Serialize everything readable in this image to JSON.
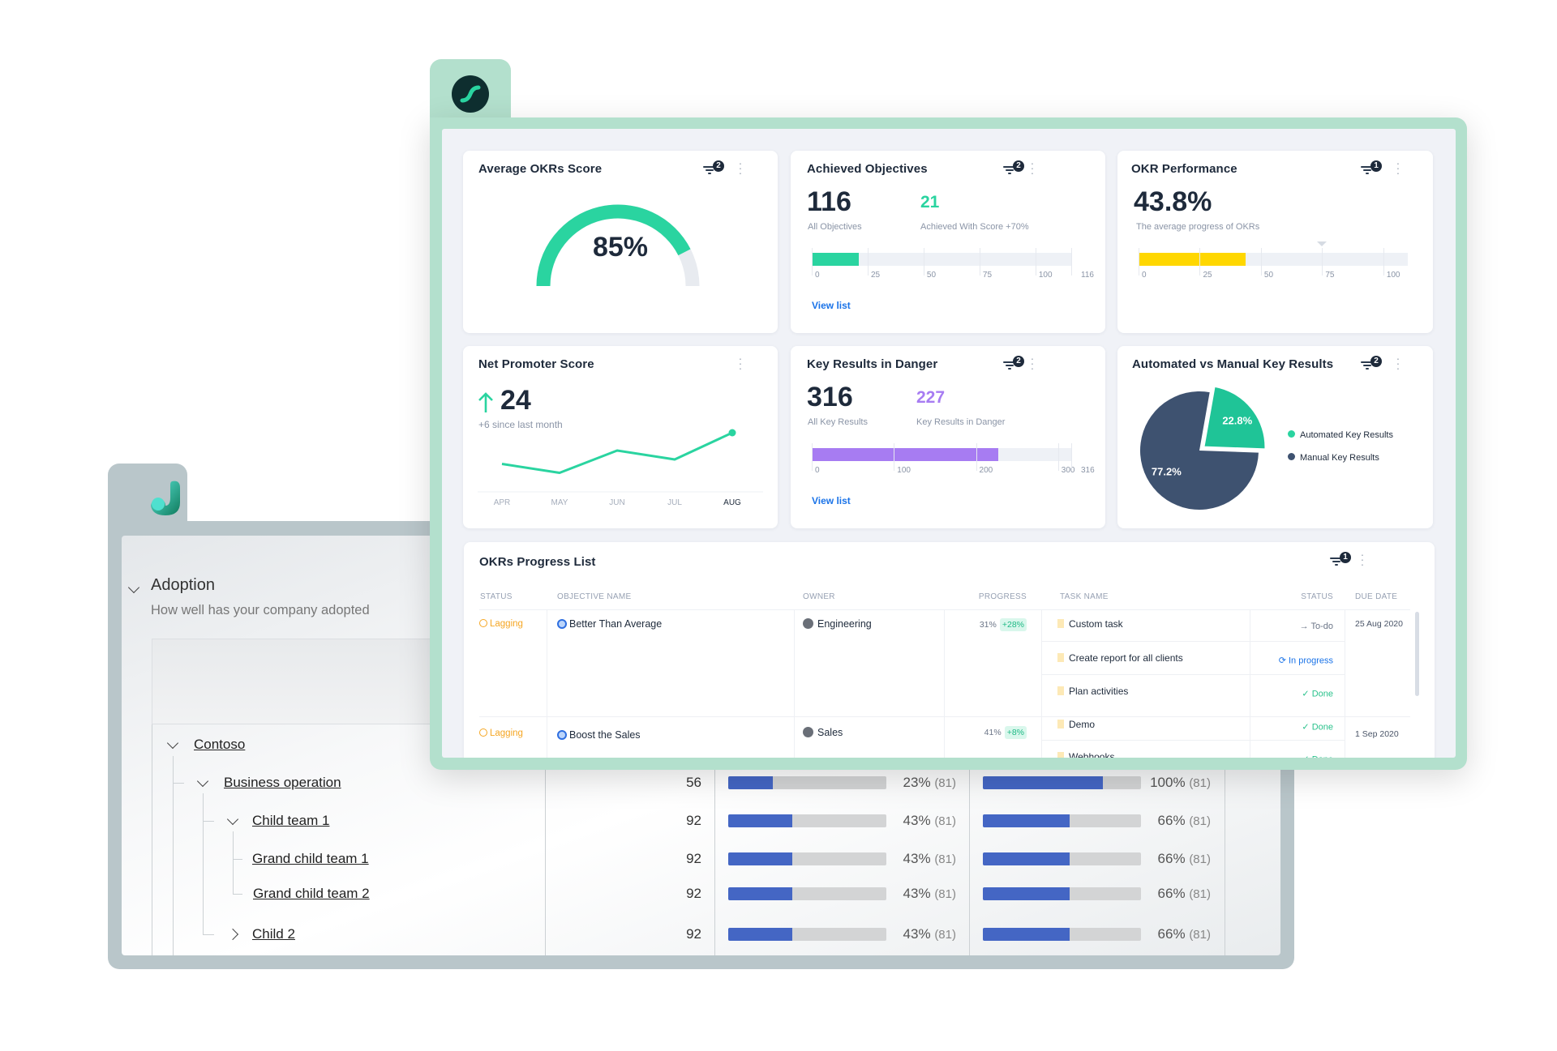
{
  "back_window": {
    "section": {
      "title": "Adoption",
      "subtitle": "How well has your company adopted"
    },
    "tree": [
      {
        "label": "Contoso",
        "level": 0,
        "expanded": true
      },
      {
        "label": "Business operation",
        "level": 1,
        "expanded": true,
        "count": "56",
        "bar1_pct": 23,
        "bar1_text": "23%",
        "bar1_n": "(81)",
        "bar2_pct": 100,
        "bar2_text": "100%",
        "bar2_n": "(81)"
      },
      {
        "label": "Child team 1",
        "level": 2,
        "expanded": true,
        "count": "92",
        "bar1_pct": 43,
        "bar1_text": "43%",
        "bar1_n": "(81)",
        "bar2_pct": 66,
        "bar2_text": "66%",
        "bar2_n": "(81)"
      },
      {
        "label": "Grand child team 1",
        "level": 3,
        "count": "92",
        "bar1_pct": 43,
        "bar1_text": "43%",
        "bar1_n": "(81)",
        "bar2_pct": 66,
        "bar2_text": "66%",
        "bar2_n": "(81)"
      },
      {
        "label": "Grand child team 2",
        "level": 3,
        "count": "92",
        "bar1_pct": 43,
        "bar1_text": "43%",
        "bar1_n": "(81)",
        "bar2_pct": 66,
        "bar2_text": "66%",
        "bar2_n": "(81)"
      },
      {
        "label": "Child 2",
        "level": 2,
        "expanded": false,
        "count": "92",
        "bar1_pct": 43,
        "bar1_text": "43%",
        "bar1_n": "(81)",
        "bar2_pct": 66,
        "bar2_text": "66%",
        "bar2_n": "(81)"
      }
    ]
  },
  "colors": {
    "green": "#2ad4a0",
    "navy": "#3e5270",
    "purple": "#a77cf2",
    "yellow": "#ffd700",
    "link": "#1a73e8",
    "lagging": "#f5a623",
    "bar_blue": "#4466c4"
  },
  "cards": {
    "avg_score": {
      "title": "Average OKRs Score",
      "filter_count": "2",
      "value": "85%",
      "gauge_fraction": 0.85
    },
    "achieved": {
      "title": "Achieved Objectives",
      "filter_count": "2",
      "total": "116",
      "total_label": "All Objectives",
      "achieved": "21",
      "achieved_label": "Achieved With  Score +70%",
      "bar": {
        "value": 21,
        "max": 116,
        "ticks": [
          "0",
          "25",
          "50",
          "75",
          "100",
          "116"
        ]
      },
      "link": "View list"
    },
    "performance": {
      "title": "OKR Performance",
      "filter_count": "1",
      "value": "43.8%",
      "label": "The average progress of OKRs",
      "bar": {
        "value": 43.8,
        "max": 110,
        "target": 75,
        "ticks": [
          "0",
          "25",
          "50",
          "75",
          "100"
        ]
      }
    },
    "nps": {
      "title": "Net Promoter Score",
      "value": "24",
      "change": "+6 since last month"
    },
    "danger": {
      "title": "Key Results in Danger",
      "filter_count": "2",
      "total": "316",
      "total_label": "All Key Results",
      "danger": "227",
      "danger_label": "Key Results in Danger",
      "bar": {
        "value": 227,
        "max": 316,
        "ticks": [
          "0",
          "100",
          "200",
          "300",
          "316"
        ]
      },
      "link": "View list"
    },
    "automated": {
      "title": "Automated vs Manual Key Results",
      "filter_count": "2"
    }
  },
  "chart_data": [
    {
      "type": "line",
      "title": "Net Promoter Score",
      "categories": [
        "APR",
        "MAY",
        "JUN",
        "JUL",
        "AUG"
      ],
      "values": [
        17,
        15,
        20,
        18,
        24
      ],
      "grid": false
    },
    {
      "type": "pie",
      "title": "Automated vs Manual Key Results",
      "legend": "right",
      "slices": [
        {
          "name": "Automated Key Results",
          "value": 22.8,
          "label": "22.8%",
          "color": "#1fc497"
        },
        {
          "name": "Manual Key Results",
          "value": 77.2,
          "label": "77.2%",
          "color": "#3e5270"
        }
      ]
    }
  ],
  "progress_list": {
    "title": "OKRs Progress List",
    "filter_count": "1",
    "columns": [
      "STATUS",
      "OBJECTIVE NAME",
      "OWNER",
      "PROGRESS",
      "TASK NAME",
      "STATUS",
      "DUE DATE"
    ],
    "rows": [
      {
        "status": "Lagging",
        "objective": "Better Than Average",
        "owner": "Engineering",
        "progress": "31%",
        "delta": "+28%",
        "due": "25 Aug 2020",
        "tasks": [
          {
            "name": "Custom task",
            "status": "To-do",
            "kind": "todo"
          },
          {
            "name": "Create report for all clients",
            "status": "In progress",
            "kind": "progress"
          },
          {
            "name": "Plan activities",
            "status": "Done",
            "kind": "done"
          }
        ]
      },
      {
        "status": "Lagging",
        "objective": "Boost the Sales",
        "owner": "Sales",
        "progress": "41%",
        "delta": "+8%",
        "due": "1 Sep 2020",
        "tasks": [
          {
            "name": "Demo",
            "status": "Done",
            "kind": "done"
          },
          {
            "name": "Webhooks",
            "status": "Done",
            "kind": "done"
          }
        ]
      }
    ]
  }
}
